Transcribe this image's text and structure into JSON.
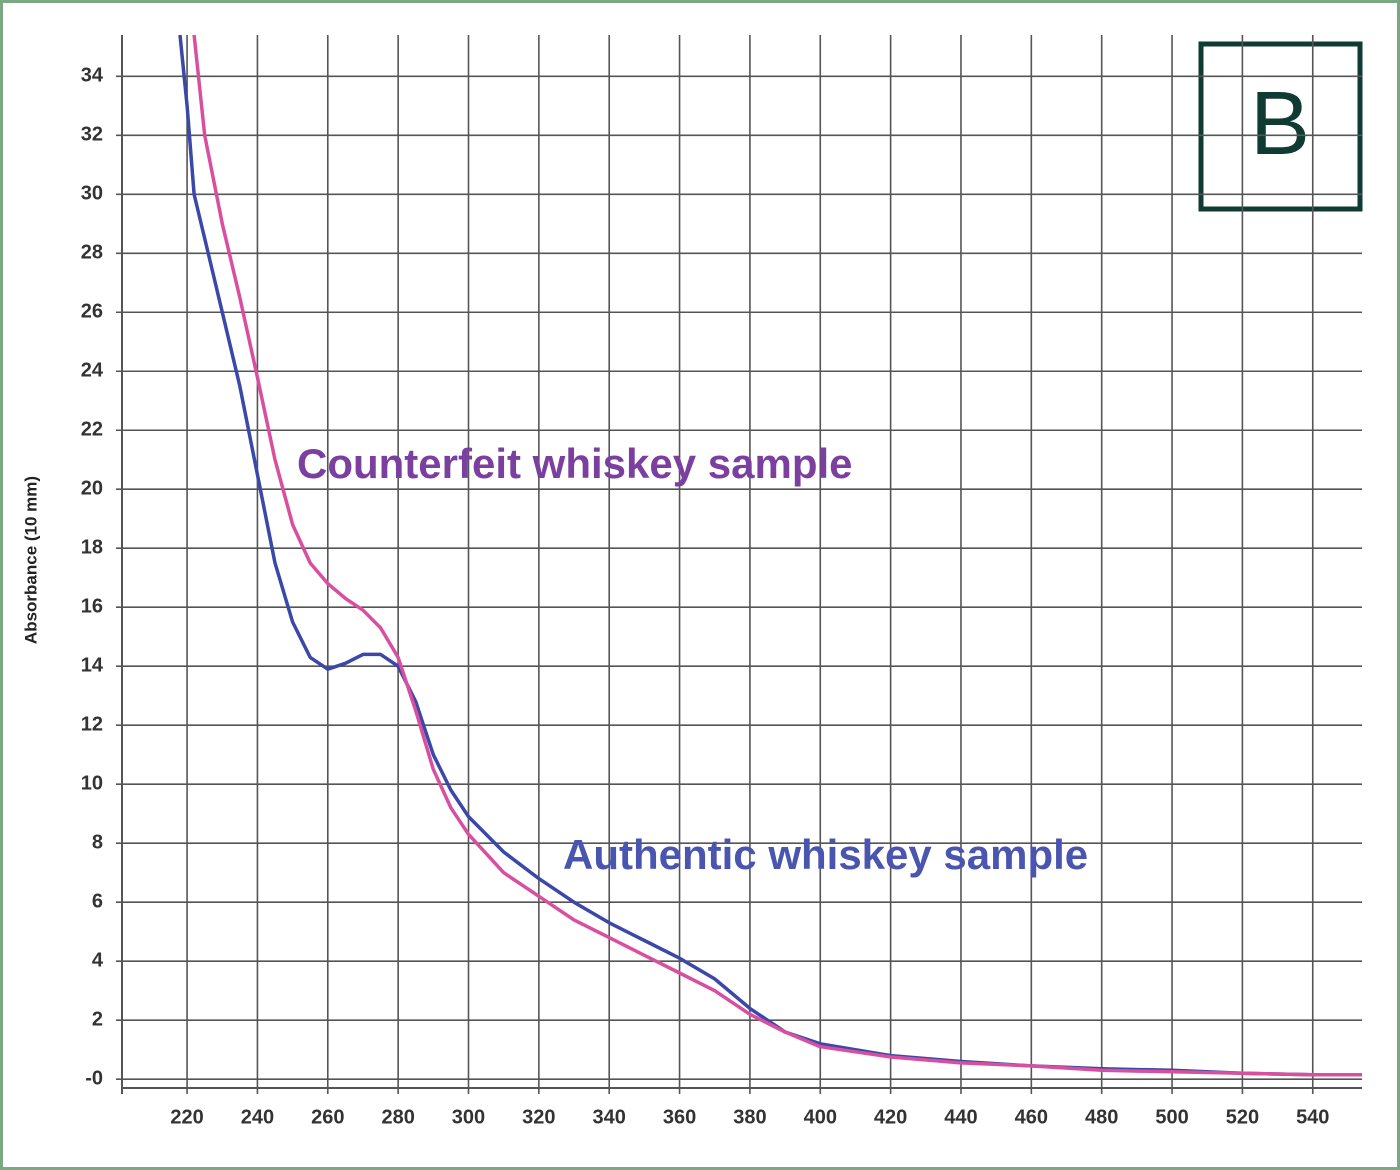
{
  "chart_data": {
    "type": "line",
    "y_label": "Absorbance (10 mm)",
    "panel_label": "B",
    "x": [
      218,
      220,
      222,
      225,
      230,
      235,
      240,
      245,
      250,
      255,
      260,
      265,
      270,
      275,
      280,
      285,
      290,
      295,
      300,
      310,
      320,
      330,
      340,
      350,
      360,
      370,
      380,
      390,
      400,
      420,
      440,
      460,
      480,
      500,
      520,
      540,
      554
    ],
    "series": [
      {
        "name": "Authentic whiskey sample",
        "color": "#3a48a8",
        "values": [
          35.4,
          33,
          30,
          28.5,
          26,
          23.5,
          20.5,
          17.5,
          15.5,
          14.3,
          13.9,
          14.1,
          14.4,
          14.4,
          14,
          12.8,
          11,
          9.8,
          8.9,
          7.7,
          6.8,
          6,
          5.3,
          4.7,
          4.1,
          3.4,
          2.4,
          1.6,
          1.2,
          0.8,
          0.6,
          0.45,
          0.35,
          0.3,
          0.2,
          0.15,
          0.15
        ]
      },
      {
        "name": "Counterfeit whiskey sample",
        "color": "#d94fa0",
        "values": [
          null,
          null,
          35.4,
          32,
          29,
          26.5,
          23.8,
          21,
          18.8,
          17.5,
          16.8,
          16.3,
          15.9,
          15.3,
          14.3,
          12.5,
          10.5,
          9.2,
          8.3,
          7,
          6.2,
          5.4,
          4.8,
          4.2,
          3.6,
          3,
          2.2,
          1.6,
          1.1,
          0.75,
          0.55,
          0.45,
          0.3,
          0.25,
          0.2,
          0.15,
          0.15
        ]
      }
    ],
    "annotations": [
      {
        "text": "Counterfeit whiskey sample",
        "color": "#7b3fa0"
      },
      {
        "text": "Authentic whiskey sample",
        "color": "#4a55b0"
      }
    ],
    "xlim": [
      201.5,
      554
    ],
    "ylim": [
      -0.3,
      35.4
    ],
    "xticks": [
      220,
      240,
      260,
      280,
      300,
      320,
      340,
      360,
      380,
      400,
      420,
      440,
      460,
      480,
      500,
      520,
      540
    ],
    "yticks": [
      {
        "value": 0,
        "label": "-0"
      },
      2,
      4,
      6,
      8,
      10,
      12,
      14,
      16,
      18,
      20,
      22,
      24,
      26,
      28,
      30,
      32,
      34
    ],
    "grid": true
  }
}
